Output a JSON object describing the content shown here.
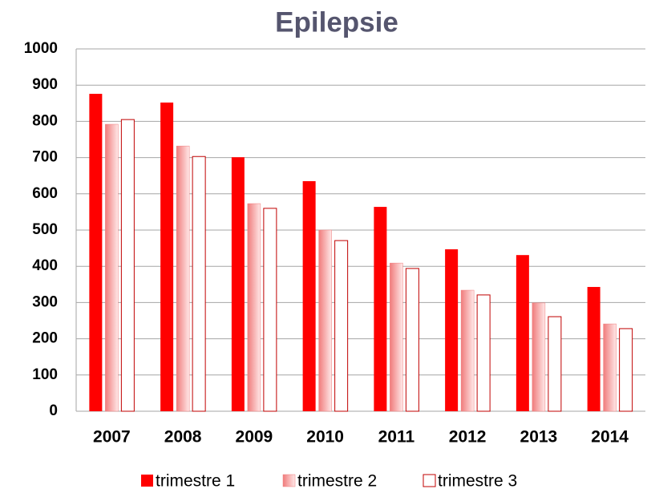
{
  "chart_data": {
    "type": "bar",
    "title": "Epilepsie",
    "categories": [
      "2007",
      "2008",
      "2009",
      "2010",
      "2011",
      "2012",
      "2013",
      "2014"
    ],
    "series": [
      {
        "name": "trimestre 1",
        "color": "#ff0000",
        "values": [
          876,
          852,
          701,
          635,
          564,
          447,
          431,
          343
        ]
      },
      {
        "name": "trimestre 2",
        "color": "#f07c7c",
        "values": [
          792,
          732,
          573,
          500,
          409,
          334,
          299,
          241
        ]
      },
      {
        "name": "trimestre 3",
        "color": "#c00000",
        "values": [
          805,
          703,
          560,
          471,
          394,
          321,
          261,
          228
        ]
      }
    ],
    "ylim": [
      0,
      1000
    ],
    "yticks": [
      0,
      100,
      200,
      300,
      400,
      500,
      600,
      700,
      800,
      900,
      1000
    ],
    "grid": true
  }
}
